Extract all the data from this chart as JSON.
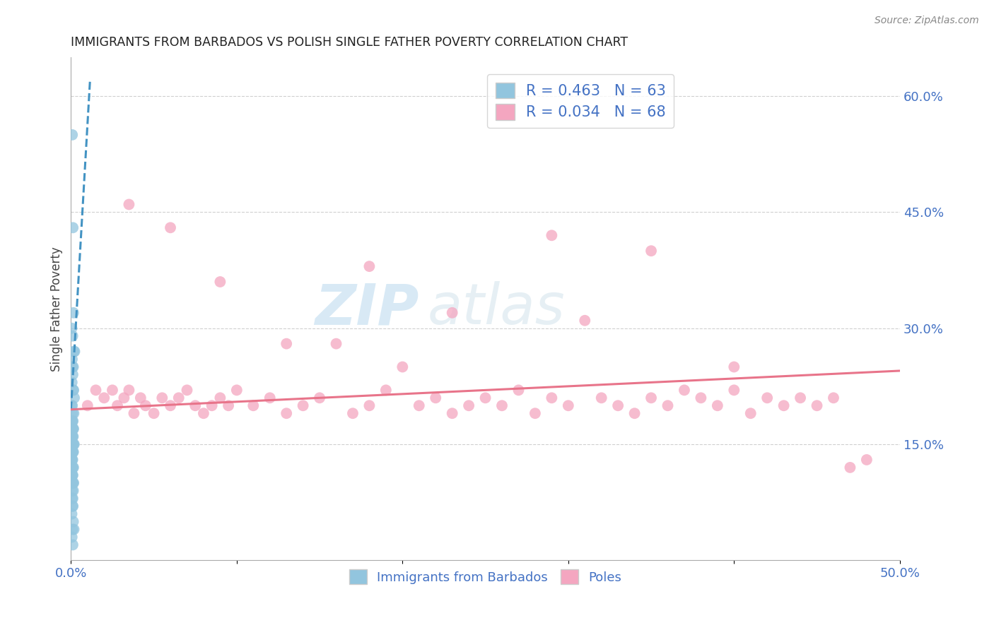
{
  "title": "IMMIGRANTS FROM BARBADOS VS POLISH SINGLE FATHER POVERTY CORRELATION CHART",
  "source": "Source: ZipAtlas.com",
  "ylabel": "Single Father Poverty",
  "xlim": [
    0.0,
    0.5
  ],
  "ylim": [
    0.0,
    0.65
  ],
  "xtick_positions": [
    0.0,
    0.1,
    0.2,
    0.3,
    0.4,
    0.5
  ],
  "xticklabels": [
    "0.0%",
    "",
    "",
    "",
    "",
    "50.0%"
  ],
  "ytick_right_positions": [
    0.15,
    0.3,
    0.45,
    0.6
  ],
  "ytick_right_labels": [
    "15.0%",
    "30.0%",
    "45.0%",
    "60.0%"
  ],
  "legend_R1": "R = 0.463",
  "legend_N1": "N = 63",
  "legend_R2": "R = 0.034",
  "legend_N2": "N = 68",
  "legend_label1": "Immigrants from Barbados",
  "legend_label2": "Poles",
  "color_blue": "#92c5de",
  "color_pink": "#f4a6c0",
  "color_blue_line": "#4393c3",
  "color_pink_line": "#e8748a",
  "background_color": "#ffffff",
  "watermark1": "ZIP",
  "watermark2": "atlas",
  "blue_scatter_x": [
    0.0008,
    0.0012,
    0.0015,
    0.0005,
    0.001,
    0.0018,
    0.0022,
    0.0007,
    0.0014,
    0.0009,
    0.0011,
    0.0006,
    0.0013,
    0.0016,
    0.002,
    0.0004,
    0.0008,
    0.001,
    0.0017,
    0.0012,
    0.0006,
    0.0009,
    0.0014,
    0.0011,
    0.0007,
    0.0015,
    0.0008,
    0.0013,
    0.0005,
    0.001,
    0.0016,
    0.0019,
    0.0012,
    0.0008,
    0.0011,
    0.0006,
    0.0014,
    0.0009,
    0.0013,
    0.0007,
    0.001,
    0.0005,
    0.0012,
    0.0008,
    0.0015,
    0.0011,
    0.0009,
    0.0006,
    0.0013,
    0.001,
    0.0016,
    0.0014,
    0.0008,
    0.0011,
    0.0007,
    0.0012,
    0.0009,
    0.0005,
    0.0014,
    0.001,
    0.0018,
    0.0006,
    0.0011
  ],
  "blue_scatter_y": [
    0.55,
    0.43,
    0.32,
    0.3,
    0.29,
    0.27,
    0.27,
    0.26,
    0.25,
    0.25,
    0.24,
    0.23,
    0.22,
    0.22,
    0.21,
    0.2,
    0.2,
    0.19,
    0.19,
    0.18,
    0.18,
    0.18,
    0.17,
    0.17,
    0.17,
    0.17,
    0.16,
    0.16,
    0.16,
    0.16,
    0.15,
    0.15,
    0.15,
    0.15,
    0.15,
    0.14,
    0.14,
    0.14,
    0.14,
    0.13,
    0.13,
    0.13,
    0.12,
    0.12,
    0.12,
    0.11,
    0.11,
    0.11,
    0.1,
    0.1,
    0.1,
    0.09,
    0.09,
    0.08,
    0.08,
    0.07,
    0.07,
    0.06,
    0.05,
    0.04,
    0.04,
    0.03,
    0.02
  ],
  "pink_scatter_x": [
    0.01,
    0.015,
    0.02,
    0.025,
    0.028,
    0.032,
    0.035,
    0.038,
    0.042,
    0.045,
    0.05,
    0.055,
    0.06,
    0.065,
    0.07,
    0.075,
    0.08,
    0.085,
    0.09,
    0.095,
    0.1,
    0.11,
    0.12,
    0.13,
    0.14,
    0.15,
    0.16,
    0.17,
    0.18,
    0.19,
    0.2,
    0.21,
    0.22,
    0.23,
    0.24,
    0.25,
    0.26,
    0.27,
    0.28,
    0.29,
    0.3,
    0.31,
    0.32,
    0.33,
    0.34,
    0.35,
    0.36,
    0.37,
    0.38,
    0.39,
    0.4,
    0.41,
    0.42,
    0.43,
    0.44,
    0.45,
    0.46,
    0.47,
    0.035,
    0.06,
    0.09,
    0.13,
    0.18,
    0.23,
    0.29,
    0.35,
    0.4,
    0.48
  ],
  "pink_scatter_y": [
    0.2,
    0.22,
    0.21,
    0.22,
    0.2,
    0.21,
    0.22,
    0.19,
    0.21,
    0.2,
    0.19,
    0.21,
    0.2,
    0.21,
    0.22,
    0.2,
    0.19,
    0.2,
    0.21,
    0.2,
    0.22,
    0.2,
    0.21,
    0.19,
    0.2,
    0.21,
    0.28,
    0.19,
    0.2,
    0.22,
    0.25,
    0.2,
    0.21,
    0.19,
    0.2,
    0.21,
    0.2,
    0.22,
    0.19,
    0.21,
    0.2,
    0.31,
    0.21,
    0.2,
    0.19,
    0.21,
    0.2,
    0.22,
    0.21,
    0.2,
    0.22,
    0.19,
    0.21,
    0.2,
    0.21,
    0.2,
    0.21,
    0.12,
    0.46,
    0.43,
    0.36,
    0.28,
    0.38,
    0.32,
    0.42,
    0.4,
    0.25,
    0.13
  ],
  "blue_trendline_x": [
    0.0,
    0.0115
  ],
  "blue_trendline_y": [
    0.195,
    0.62
  ],
  "pink_trendline_x": [
    0.0,
    0.5
  ],
  "pink_trendline_y": [
    0.195,
    0.245
  ]
}
